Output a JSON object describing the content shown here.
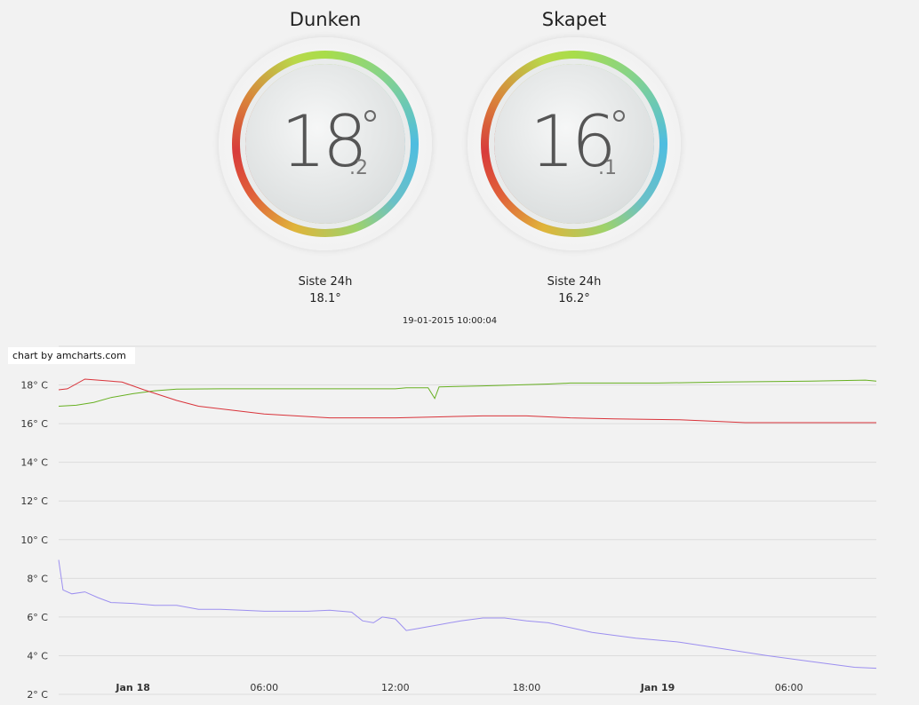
{
  "gauges": [
    {
      "title": "Dunken",
      "integer": "18",
      "decimal": ".2",
      "stats_label": "Siste 24h",
      "stats_value": "18.1°"
    },
    {
      "title": "Skapet",
      "integer": "16",
      "decimal": ".1",
      "stats_label": "Siste 24h",
      "stats_value": "16.2°"
    }
  ],
  "timestamp": "19-01-2015 10:00:04",
  "credit": "chart by amcharts.com",
  "colors": {
    "green": "#67b021",
    "red": "#d9333a",
    "purple": "#9c8ff0"
  },
  "chart_data": {
    "type": "line",
    "y_ticks": [
      "2° C",
      "4° C",
      "6° C",
      "8° C",
      "10° C",
      "12° C",
      "14° C",
      "16° C",
      "18° C"
    ],
    "ylim": [
      2,
      20
    ],
    "x_ticks": [
      {
        "label": "Jan 18",
        "hour": 0,
        "bold": true
      },
      {
        "label": "06:00",
        "hour": 6,
        "bold": false
      },
      {
        "label": "12:00",
        "hour": 12,
        "bold": false
      },
      {
        "label": "18:00",
        "hour": 18,
        "bold": false
      },
      {
        "label": "Jan 19",
        "hour": 24,
        "bold": true
      },
      {
        "label": "06:00",
        "hour": 30,
        "bold": false
      }
    ],
    "xlim": [
      -3.4,
      34.0
    ],
    "series": [
      {
        "color": "#67b021",
        "points": [
          [
            -3.4,
            16.9
          ],
          [
            -2.6,
            16.95
          ],
          [
            -1.8,
            17.1
          ],
          [
            -1.0,
            17.35
          ],
          [
            0,
            17.55
          ],
          [
            1,
            17.7
          ],
          [
            2,
            17.78
          ],
          [
            4,
            17.8
          ],
          [
            8,
            17.8
          ],
          [
            12,
            17.8
          ],
          [
            12.5,
            17.85
          ],
          [
            13.5,
            17.85
          ],
          [
            13.8,
            17.3
          ],
          [
            14.0,
            17.9
          ],
          [
            16,
            17.95
          ],
          [
            19,
            18.05
          ],
          [
            20,
            18.1
          ],
          [
            24,
            18.1
          ],
          [
            27,
            18.15
          ],
          [
            31,
            18.2
          ],
          [
            33.5,
            18.25
          ],
          [
            34.0,
            18.2
          ]
        ]
      },
      {
        "color": "#d9333a",
        "points": [
          [
            -3.4,
            17.75
          ],
          [
            -3.0,
            17.8
          ],
          [
            -2.2,
            18.3
          ],
          [
            -1.6,
            18.25
          ],
          [
            -0.5,
            18.15
          ],
          [
            0.5,
            17.75
          ],
          [
            2,
            17.2
          ],
          [
            3,
            16.9
          ],
          [
            4.5,
            16.7
          ],
          [
            6,
            16.5
          ],
          [
            9,
            16.3
          ],
          [
            12,
            16.3
          ],
          [
            14,
            16.35
          ],
          [
            16,
            16.4
          ],
          [
            18,
            16.4
          ],
          [
            20,
            16.3
          ],
          [
            22,
            16.25
          ],
          [
            25,
            16.2
          ],
          [
            27,
            16.1
          ],
          [
            28,
            16.05
          ],
          [
            31,
            16.05
          ],
          [
            34.0,
            16.05
          ]
        ]
      },
      {
        "color": "#9c8ff0",
        "points": [
          [
            -3.4,
            8.95
          ],
          [
            -3.2,
            7.4
          ],
          [
            -2.8,
            7.2
          ],
          [
            -2.2,
            7.3
          ],
          [
            -1.6,
            7.0
          ],
          [
            -1.0,
            6.75
          ],
          [
            0,
            6.7
          ],
          [
            1,
            6.6
          ],
          [
            2,
            6.6
          ],
          [
            3,
            6.4
          ],
          [
            4,
            6.4
          ],
          [
            5,
            6.35
          ],
          [
            6,
            6.3
          ],
          [
            8,
            6.3
          ],
          [
            9,
            6.35
          ],
          [
            10,
            6.25
          ],
          [
            10.5,
            5.8
          ],
          [
            11,
            5.7
          ],
          [
            11.4,
            6.0
          ],
          [
            12,
            5.9
          ],
          [
            12.5,
            5.3
          ],
          [
            13,
            5.4
          ],
          [
            14,
            5.6
          ],
          [
            15,
            5.8
          ],
          [
            16,
            5.95
          ],
          [
            17,
            5.95
          ],
          [
            18,
            5.8
          ],
          [
            19,
            5.7
          ],
          [
            21,
            5.2
          ],
          [
            23,
            4.9
          ],
          [
            25,
            4.7
          ],
          [
            27,
            4.35
          ],
          [
            29,
            4.0
          ],
          [
            31,
            3.7
          ],
          [
            33,
            3.4
          ],
          [
            34.0,
            3.35
          ]
        ]
      }
    ]
  }
}
